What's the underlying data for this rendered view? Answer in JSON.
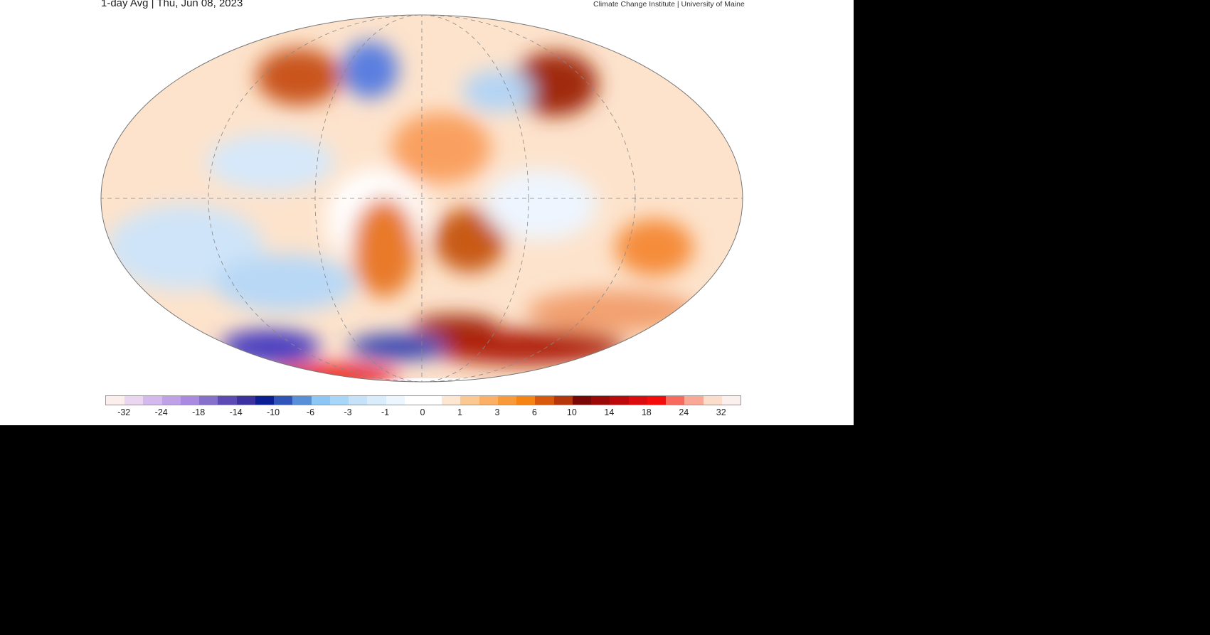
{
  "title": "1-day Avg | Thu, Jun 08, 2023",
  "credit": "Climate Change Institute | University of Maine",
  "colorbar": {
    "colors": [
      "#fdeeee",
      "#ead6f0",
      "#d4b9ec",
      "#c0a0e6",
      "#a98ae0",
      "#8670cc",
      "#5d4ab4",
      "#3b32a0",
      "#0c1e94",
      "#3154b8",
      "#5890d8",
      "#8cc6f4",
      "#a8d6f8",
      "#c4e2fa",
      "#d8ecfc",
      "#ecf6fe",
      "#ffffff",
      "#ffffff",
      "#fde6d2",
      "#fcc892",
      "#fbb066",
      "#f99a3a",
      "#f68412",
      "#d8580e",
      "#b4360a",
      "#7a0606",
      "#9a0808",
      "#bc0a0c",
      "#da0c10",
      "#f40c0c",
      "#f86a5e",
      "#f8a894",
      "#fcdcca",
      "#fcf0ee"
    ],
    "tick_labels": [
      "-32",
      "-24",
      "-18",
      "-14",
      "-10",
      "-6",
      "-3",
      "-1",
      "0",
      "1",
      "3",
      "6",
      "10",
      "14",
      "18",
      "24",
      "32"
    ]
  }
}
